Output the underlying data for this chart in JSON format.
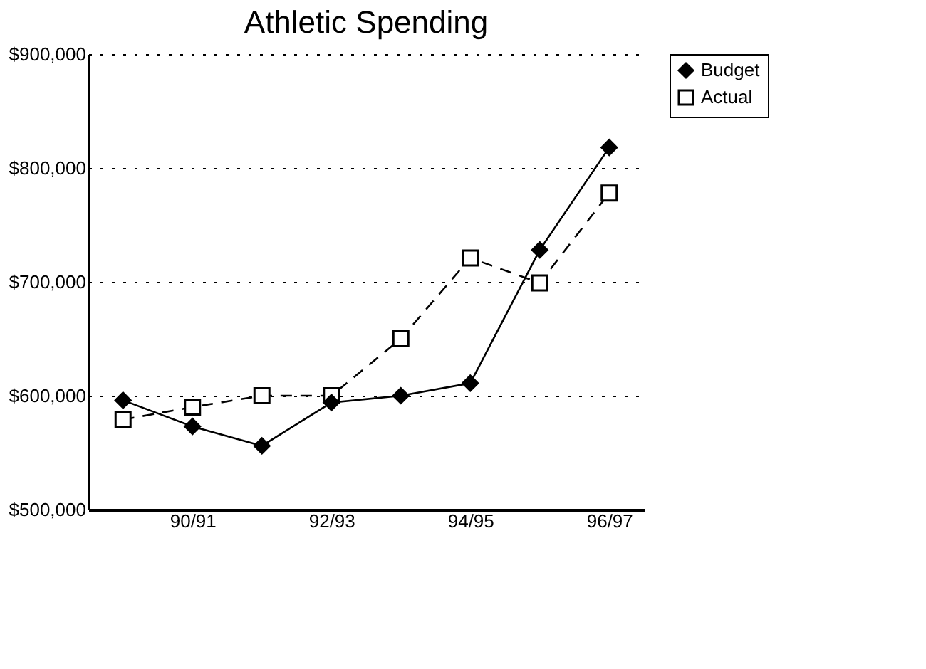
{
  "chart_data": {
    "type": "line",
    "title": "Athletic Spending",
    "categories": [
      null,
      "90/91",
      null,
      "92/93",
      null,
      "94/95",
      null,
      "96/97"
    ],
    "series": [
      {
        "name": "Budget",
        "color": "#000000",
        "marker": "diamond",
        "line_style": "solid",
        "values": [
          596000,
          573000,
          556000,
          594000,
          600000,
          611000,
          728000,
          818000
        ]
      },
      {
        "name": "Actual",
        "color": "#000000",
        "marker": "square",
        "line_style": "dashed",
        "values": [
          579000,
          590000,
          600000,
          600000,
          650000,
          721000,
          699000,
          778000
        ]
      }
    ],
    "ylim": [
      500000,
      900000
    ],
    "yticks": [
      {
        "value": 500000,
        "label": "$500,000"
      },
      {
        "value": 600000,
        "label": "$600,000"
      },
      {
        "value": 700000,
        "label": "$700,000"
      },
      {
        "value": 800000,
        "label": "$800,000"
      },
      {
        "value": 900000,
        "label": "$900,000"
      }
    ],
    "grid": "y",
    "legend": "top right"
  }
}
